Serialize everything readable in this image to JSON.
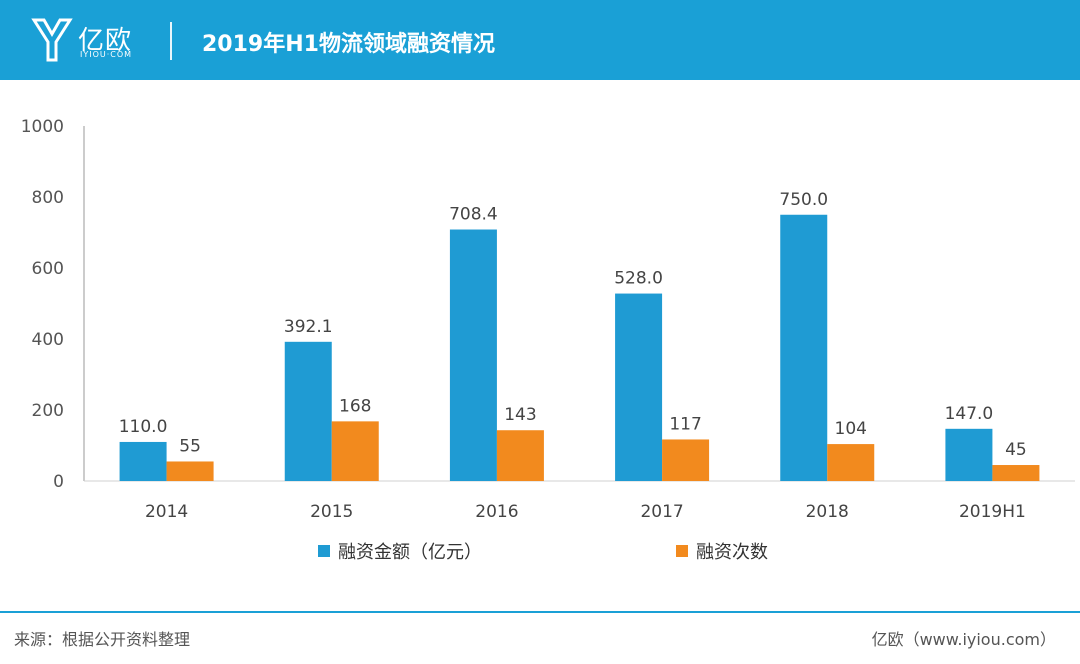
{
  "header": {
    "logo_text": "亿欧",
    "logo_sub": "IYIOU·COM",
    "title": "2019年H1物流领域融资情况"
  },
  "colors": {
    "header": "#1aa0d6",
    "series1": "#1f9bd3",
    "series2": "#f28a1e",
    "axis": "#9a9a9a"
  },
  "chart_data": {
    "type": "bar",
    "title": "2019年H1物流领域融资情况",
    "categories": [
      "2014",
      "2015",
      "2016",
      "2017",
      "2018",
      "2019H1"
    ],
    "series": [
      {
        "name": "融资金额（亿元）",
        "values": [
          110.0,
          392.1,
          708.4,
          528.0,
          750.0,
          147.0
        ],
        "labels": [
          "110.0",
          "392.1",
          "708.4",
          "528.0",
          "750.0",
          "147.0"
        ]
      },
      {
        "name": "融资次数",
        "values": [
          55,
          168,
          143,
          117,
          104,
          45
        ],
        "labels": [
          "55",
          "168",
          "143",
          "117",
          "104",
          "45"
        ]
      }
    ],
    "yticks": [
      "0",
      "200",
      "400",
      "600",
      "800",
      "1000"
    ],
    "ylim": [
      0,
      1000
    ],
    "xlabel": "",
    "ylabel": "",
    "legend_position": "bottom"
  },
  "footer": {
    "source": "来源：根据公开资料整理",
    "site": "亿欧（www.iyiou.com）"
  }
}
